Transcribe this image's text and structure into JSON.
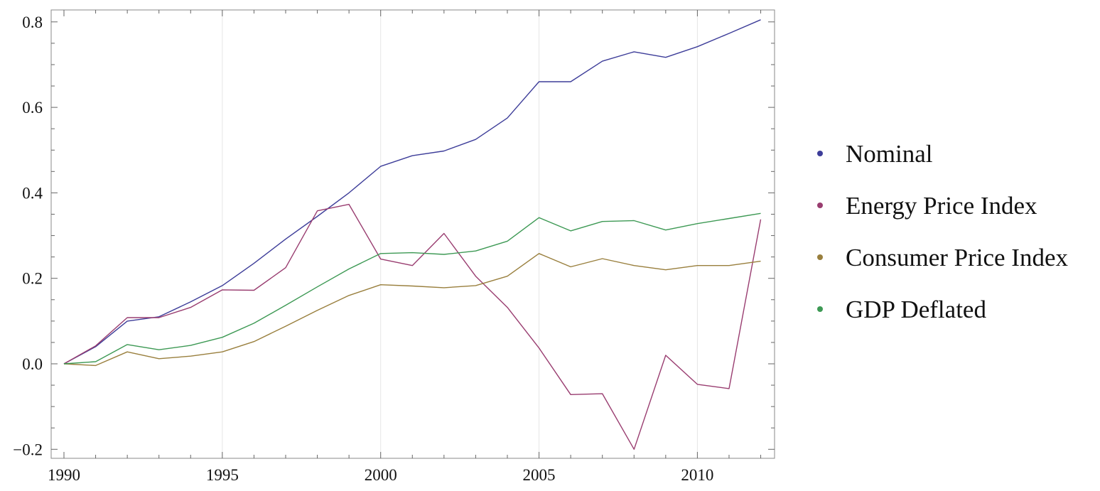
{
  "chart_data": {
    "type": "line",
    "title": "",
    "xlabel": "",
    "ylabel": "",
    "xlim": [
      1989.6,
      2012.5
    ],
    "ylim": [
      -0.22,
      0.83
    ],
    "x_ticks": [
      1990,
      1995,
      2000,
      2005,
      2010
    ],
    "x_tick_labels": [
      "1990",
      "1995",
      "2000",
      "2005",
      "2010"
    ],
    "y_ticks": [
      -0.2,
      0.0,
      0.2,
      0.4,
      0.6,
      0.8
    ],
    "y_tick_labels": [
      "−0.2",
      "0.0",
      "0.2",
      "0.4",
      "0.6",
      "0.8"
    ],
    "grid": "vertical at major x ticks",
    "legend_placement": "right",
    "x": [
      1990,
      1991,
      1992,
      1993,
      1994,
      1995,
      1996,
      1997,
      1998,
      1999,
      2000,
      2001,
      2002,
      2003,
      2004,
      2005,
      2006,
      2007,
      2008,
      2009,
      2010,
      2011,
      2012
    ],
    "series": [
      {
        "name": "Nominal",
        "color": "#3d3d99",
        "values": [
          0,
          0.04,
          0.1,
          0.11,
          0.145,
          0.183,
          0.235,
          0.292,
          0.345,
          0.4,
          0.462,
          0.487,
          0.498,
          0.525,
          0.575,
          0.66,
          0.66,
          0.708,
          0.73,
          0.717,
          0.742,
          0.773,
          0.805
        ]
      },
      {
        "name": "Energy Price Index",
        "color": "#993d70",
        "values": [
          0,
          0.042,
          0.108,
          0.108,
          0.132,
          0.173,
          0.172,
          0.225,
          0.358,
          0.373,
          0.245,
          0.23,
          0.305,
          0.205,
          0.132,
          0.037,
          -0.072,
          -0.07,
          -0.2,
          0.02,
          -0.048,
          -0.058,
          0.338
        ]
      },
      {
        "name": "Consumer Price Index",
        "color": "#997f3d",
        "values": [
          0,
          -0.004,
          0.028,
          0.012,
          0.018,
          0.028,
          0.052,
          0.088,
          0.125,
          0.16,
          0.185,
          0.182,
          0.178,
          0.183,
          0.205,
          0.258,
          0.227,
          0.246,
          0.23,
          0.22,
          0.23,
          0.23,
          0.24
        ]
      },
      {
        "name": "GDP Deflated",
        "color": "#3d9954",
        "values": [
          0,
          0.005,
          0.045,
          0.033,
          0.043,
          0.062,
          0.095,
          0.137,
          0.18,
          0.222,
          0.258,
          0.26,
          0.256,
          0.264,
          0.287,
          0.342,
          0.311,
          0.333,
          0.335,
          0.313,
          0.328,
          0.34,
          0.352
        ]
      }
    ]
  }
}
